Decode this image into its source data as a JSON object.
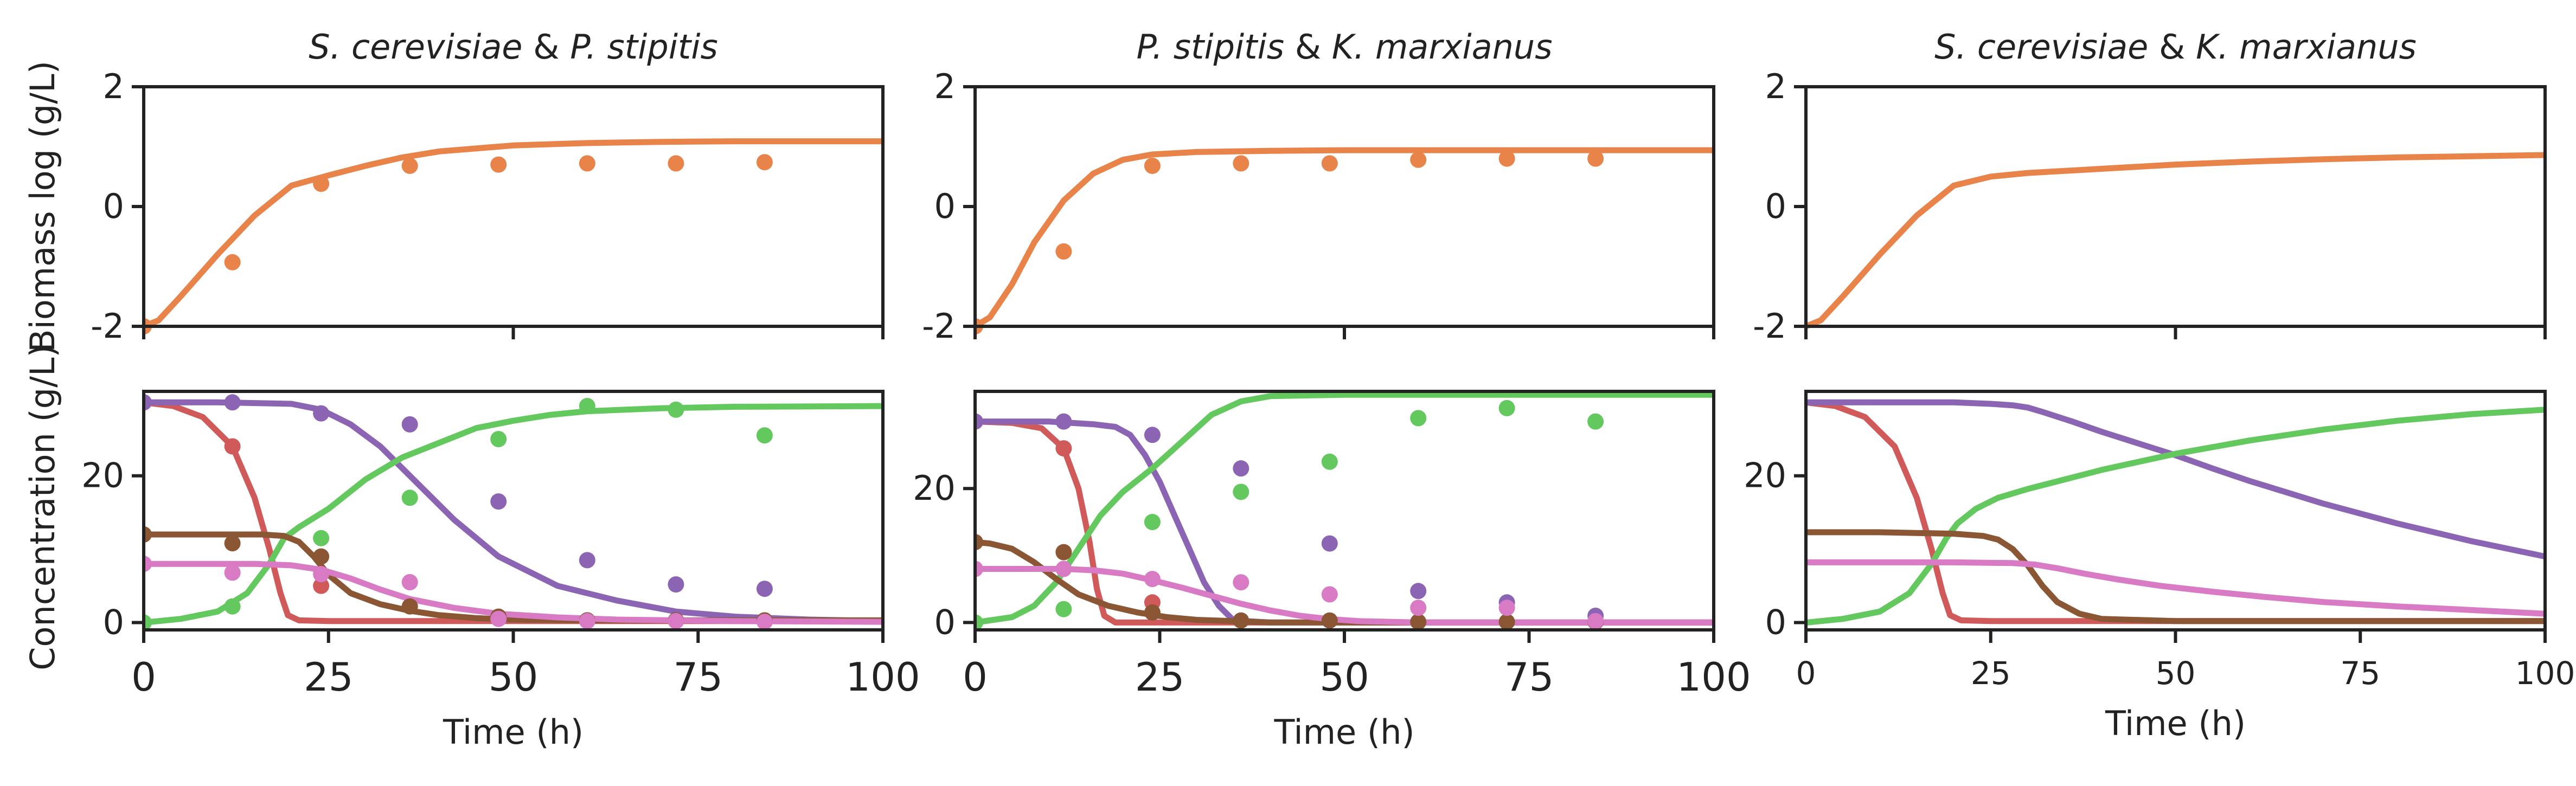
{
  "colors": {
    "biomass": "#e8834a",
    "glucose": "#d05a5a",
    "xylose": "#8c64b4",
    "ethanol": "#63c85e",
    "acetate": "#8a5634",
    "glycerol": "#d97ac4"
  },
  "chart_data": [
    {
      "id": "p1-biomass",
      "type": "line",
      "title_parts": [
        {
          "text": "S. cerevisiae",
          "italic": true
        },
        {
          "text": " & ",
          "italic": false
        },
        {
          "text": "P. stipitis",
          "italic": true
        }
      ],
      "ylabel": "Biomass log (g/L)",
      "xlabel": "",
      "xlim": [
        0,
        100
      ],
      "ylim": [
        -2,
        2
      ],
      "yticks": [
        2,
        0,
        -2
      ],
      "series": [
        {
          "key": "biomass",
          "kind": "line",
          "x": [
            0,
            2,
            5,
            10,
            15,
            20,
            25,
            30,
            35,
            40,
            50,
            60,
            70,
            80,
            90,
            100
          ],
          "y": [
            -2.0,
            -1.9,
            -1.5,
            -0.8,
            -0.15,
            0.35,
            0.52,
            0.68,
            0.82,
            0.92,
            1.02,
            1.06,
            1.08,
            1.09,
            1.09,
            1.09
          ]
        },
        {
          "key": "biomass",
          "kind": "points",
          "x": [
            0,
            12,
            24,
            36,
            48,
            60,
            72,
            84
          ],
          "y": [
            -2.0,
            -0.93,
            0.38,
            0.68,
            0.7,
            0.72,
            0.72,
            0.74
          ]
        }
      ]
    },
    {
      "id": "p2-biomass",
      "type": "line",
      "title_parts": [
        {
          "text": "P. stipitis",
          "italic": true
        },
        {
          "text": " & ",
          "italic": false
        },
        {
          "text": "K. marxianus",
          "italic": true
        }
      ],
      "xlabel": "",
      "xlim": [
        0,
        100
      ],
      "ylim": [
        -2,
        2
      ],
      "yticks": [
        2,
        0,
        -2
      ],
      "series": [
        {
          "key": "biomass",
          "kind": "line",
          "x": [
            0,
            2,
            5,
            8,
            12,
            16,
            20,
            24,
            30,
            40,
            50,
            60,
            80,
            100
          ],
          "y": [
            -2.0,
            -1.85,
            -1.3,
            -0.6,
            0.1,
            0.55,
            0.78,
            0.87,
            0.91,
            0.93,
            0.94,
            0.94,
            0.94,
            0.94
          ]
        },
        {
          "key": "biomass",
          "kind": "points",
          "x": [
            0,
            12,
            24,
            36,
            48,
            60,
            72,
            84
          ],
          "y": [
            -2.0,
            -0.75,
            0.68,
            0.72,
            0.72,
            0.78,
            0.8,
            0.8
          ]
        }
      ]
    },
    {
      "id": "p3-biomass",
      "type": "line",
      "title_parts": [
        {
          "text": "S. cerevisiae",
          "italic": true
        },
        {
          "text": " & ",
          "italic": false
        },
        {
          "text": "K. marxianus",
          "italic": true
        }
      ],
      "xlabel": "",
      "xlim": [
        0,
        100
      ],
      "ylim": [
        -2,
        2
      ],
      "yticks": [
        2,
        0,
        -2
      ],
      "series": [
        {
          "key": "biomass",
          "kind": "line",
          "x": [
            0,
            2,
            5,
            10,
            15,
            20,
            25,
            30,
            40,
            50,
            60,
            70,
            80,
            90,
            100
          ],
          "y": [
            -2.0,
            -1.9,
            -1.5,
            -0.8,
            -0.15,
            0.35,
            0.5,
            0.56,
            0.63,
            0.7,
            0.75,
            0.79,
            0.82,
            0.84,
            0.86
          ]
        }
      ]
    },
    {
      "id": "p1-conc",
      "type": "line",
      "ylabel": "Concentration (g/L)",
      "xlabel": "Time (h)",
      "xlim": [
        0,
        100
      ],
      "ylim": [
        -1,
        31.5
      ],
      "xticks": [
        0,
        25,
        50,
        75,
        100
      ],
      "yticks": [
        20,
        0
      ],
      "series": [
        {
          "key": "glucose",
          "kind": "line",
          "x": [
            0,
            4,
            8,
            12,
            15,
            17,
            18.5,
            19.5,
            21,
            25,
            100
          ],
          "y": [
            30,
            29.5,
            28,
            24,
            17,
            10,
            4,
            1,
            0.3,
            0.2,
            0.2
          ]
        },
        {
          "key": "xylose",
          "kind": "line",
          "x": [
            0,
            10,
            20,
            24,
            28,
            32,
            36,
            42,
            48,
            56,
            64,
            72,
            80,
            90,
            100
          ],
          "y": [
            30,
            30,
            29.8,
            29,
            27,
            24,
            20,
            14,
            9,
            5,
            3,
            1.5,
            0.8,
            0.4,
            0.2
          ]
        },
        {
          "key": "ethanol",
          "kind": "line",
          "x": [
            0,
            5,
            10,
            14,
            17,
            19,
            21,
            25,
            30,
            35,
            40,
            45,
            50,
            55,
            60,
            70,
            80,
            100
          ],
          "y": [
            0,
            0.5,
            1.5,
            4,
            8,
            11.5,
            13,
            15.5,
            19.5,
            22.5,
            24.5,
            26.5,
            27.5,
            28.3,
            28.8,
            29.2,
            29.4,
            29.5
          ]
        },
        {
          "key": "acetate",
          "kind": "line",
          "x": [
            0,
            10,
            16,
            19,
            21,
            23,
            25,
            28,
            32,
            36,
            40,
            45,
            50,
            60,
            100
          ],
          "y": [
            12,
            12,
            12,
            11.8,
            11,
            9,
            6.5,
            4,
            2.5,
            1.6,
            1,
            0.6,
            0.4,
            0.3,
            0.3
          ]
        },
        {
          "key": "glycerol",
          "kind": "line",
          "x": [
            0,
            15,
            20,
            24,
            28,
            32,
            36,
            42,
            48,
            56,
            64,
            72,
            80,
            100
          ],
          "y": [
            8,
            8,
            7.8,
            7.2,
            6,
            4.5,
            3.2,
            2,
            1.2,
            0.7,
            0.4,
            0.3,
            0.2,
            0.1
          ]
        },
        {
          "key": "glucose",
          "kind": "points",
          "x": [
            0,
            12,
            24
          ],
          "y": [
            30,
            24,
            5
          ]
        },
        {
          "key": "xylose",
          "kind": "points",
          "x": [
            0,
            12,
            24,
            36,
            48,
            60,
            72,
            84
          ],
          "y": [
            30,
            30,
            28.5,
            27,
            16.5,
            8.5,
            5.2,
            4.6
          ]
        },
        {
          "key": "ethanol",
          "kind": "points",
          "x": [
            0,
            12,
            24,
            36,
            48,
            60,
            72,
            84
          ],
          "y": [
            0,
            2.2,
            11.5,
            17,
            25,
            29.5,
            29,
            25.5
          ]
        },
        {
          "key": "acetate",
          "kind": "points",
          "x": [
            0,
            12,
            24,
            36,
            48,
            60,
            72,
            84
          ],
          "y": [
            12,
            10.8,
            9,
            2.2,
            0.8,
            0.3,
            0.3,
            0.3
          ]
        },
        {
          "key": "glycerol",
          "kind": "points",
          "x": [
            0,
            12,
            24,
            36,
            48,
            60,
            72,
            84
          ],
          "y": [
            8,
            6.8,
            6.6,
            5.5,
            0.5,
            0.2,
            0.2,
            0.1
          ]
        }
      ]
    },
    {
      "id": "p2-conc",
      "type": "line",
      "xlabel": "Time (h)",
      "xlim": [
        0,
        100
      ],
      "ylim": [
        -1.1,
        34.5
      ],
      "xticks": [
        0,
        25,
        50,
        75,
        100
      ],
      "yticks": [
        20,
        0
      ],
      "series": [
        {
          "key": "glucose",
          "kind": "line",
          "x": [
            0,
            5,
            9,
            12,
            14,
            15.5,
            16.5,
            17.5,
            19,
            100
          ],
          "y": [
            30,
            29.8,
            29,
            26,
            20,
            12,
            5,
            1,
            0,
            0
          ]
        },
        {
          "key": "xylose",
          "kind": "line",
          "x": [
            0,
            10,
            16,
            19,
            21,
            23,
            25,
            27,
            29,
            31,
            33,
            35,
            40,
            100
          ],
          "y": [
            30,
            30,
            29.6,
            29.2,
            28,
            25,
            21,
            16,
            11,
            6,
            2.5,
            0.3,
            0,
            0
          ]
        },
        {
          "key": "ethanol",
          "kind": "line",
          "x": [
            0,
            5,
            8,
            11,
            14,
            17,
            20,
            24,
            28,
            32,
            36,
            40,
            50,
            60,
            100
          ],
          "y": [
            0,
            0.8,
            2.5,
            6,
            11,
            16,
            19.5,
            23,
            27,
            31,
            33,
            33.8,
            34,
            34,
            34
          ]
        },
        {
          "key": "acetate",
          "kind": "line",
          "x": [
            0,
            2,
            5,
            8,
            11,
            14,
            18,
            22,
            26,
            30,
            35,
            40,
            100
          ],
          "y": [
            12,
            11.8,
            11,
            9,
            6.5,
            4.2,
            2.5,
            1.5,
            0.8,
            0.4,
            0.2,
            0,
            0
          ]
        },
        {
          "key": "glycerol",
          "kind": "line",
          "x": [
            0,
            12,
            16,
            20,
            24,
            28,
            32,
            36,
            40,
            44,
            48,
            52,
            60,
            100
          ],
          "y": [
            8,
            8,
            7.8,
            7.3,
            6.3,
            5.2,
            4,
            2.8,
            1.8,
            1,
            0.5,
            0.2,
            0,
            0
          ]
        },
        {
          "key": "glucose",
          "kind": "points",
          "x": [
            0,
            12,
            24
          ],
          "y": [
            30,
            26,
            3
          ]
        },
        {
          "key": "xylose",
          "kind": "points",
          "x": [
            0,
            12,
            24,
            36,
            48,
            60,
            72,
            84
          ],
          "y": [
            30,
            30,
            28,
            23,
            11.8,
            4.7,
            3,
            1
          ]
        },
        {
          "key": "ethanol",
          "kind": "points",
          "x": [
            0,
            12,
            24,
            36,
            48,
            60,
            72,
            84
          ],
          "y": [
            0,
            2,
            15,
            19.5,
            24,
            30.5,
            32,
            30
          ]
        },
        {
          "key": "acetate",
          "kind": "points",
          "x": [
            0,
            12,
            24,
            36,
            48,
            60,
            72,
            84
          ],
          "y": [
            12,
            10.5,
            1.5,
            0.3,
            0.3,
            0.1,
            0.1,
            0.1
          ]
        },
        {
          "key": "glycerol",
          "kind": "points",
          "x": [
            0,
            12,
            24,
            36,
            48,
            60,
            72,
            84
          ],
          "y": [
            8,
            8,
            6.5,
            6,
            4.2,
            2.2,
            2.2,
            0.2
          ]
        }
      ]
    },
    {
      "id": "p3-conc",
      "type": "line",
      "xlabel": "Time (h)",
      "xlim": [
        0,
        100
      ],
      "ylim": [
        -1,
        31.5
      ],
      "xticks": [
        0,
        25,
        50,
        75,
        100
      ],
      "yticks": [
        20,
        0
      ],
      "series": [
        {
          "key": "glucose",
          "kind": "line",
          "x": [
            0,
            4,
            8,
            12,
            15,
            17,
            18.5,
            19.5,
            21,
            25,
            100
          ],
          "y": [
            30,
            29.5,
            28,
            24,
            17,
            10,
            4,
            1,
            0.3,
            0.2,
            0.2
          ]
        },
        {
          "key": "xylose",
          "kind": "line",
          "x": [
            0,
            10,
            20,
            25,
            28,
            30,
            32,
            36,
            40,
            45,
            50,
            55,
            60,
            70,
            80,
            90,
            100
          ],
          "y": [
            30,
            30,
            30,
            29.8,
            29.6,
            29.3,
            28.7,
            27.4,
            26,
            24.4,
            22.8,
            21,
            19.3,
            16.2,
            13.5,
            11.1,
            9
          ]
        },
        {
          "key": "ethanol",
          "kind": "line",
          "x": [
            0,
            5,
            10,
            14,
            17,
            19,
            20.5,
            23,
            26,
            30,
            35,
            40,
            50,
            60,
            70,
            80,
            90,
            100
          ],
          "y": [
            0,
            0.5,
            1.5,
            4,
            8,
            11.5,
            13.5,
            15.5,
            17,
            18.2,
            19.5,
            20.8,
            23,
            24.8,
            26.3,
            27.5,
            28.4,
            29
          ]
        },
        {
          "key": "acetate",
          "kind": "line",
          "x": [
            0,
            10,
            20,
            24,
            26,
            28,
            30,
            32,
            34,
            37,
            40,
            50,
            100
          ],
          "y": [
            12.3,
            12.3,
            12.1,
            11.8,
            11.3,
            10,
            7.8,
            5,
            2.8,
            1.2,
            0.5,
            0.2,
            0.2
          ]
        },
        {
          "key": "glycerol",
          "kind": "line",
          "x": [
            0,
            20,
            28,
            31,
            34,
            38,
            42,
            48,
            55,
            62,
            70,
            80,
            90,
            100
          ],
          "y": [
            8.2,
            8.2,
            8.1,
            7.9,
            7.4,
            6.6,
            5.9,
            5,
            4.2,
            3.5,
            2.8,
            2.2,
            1.7,
            1.2
          ]
        }
      ]
    }
  ]
}
